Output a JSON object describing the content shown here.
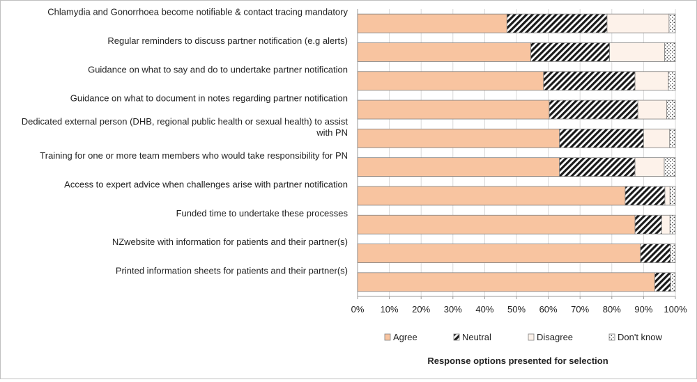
{
  "chart_data": {
    "type": "bar",
    "orientation": "horizontal",
    "stacked": "percent",
    "title": "",
    "xlabel": "Response options presented for selection",
    "ylabel": "",
    "xlim": [
      0,
      100
    ],
    "x_ticks": [
      "0%",
      "10%",
      "20%",
      "30%",
      "40%",
      "50%",
      "60%",
      "70%",
      "80%",
      "90%",
      "100%"
    ],
    "grid": true,
    "legend_position": "bottom",
    "categories": [
      "Chlamydia and Gonorrhoea become notifiable & contact tracing mandatory",
      "Regular reminders to discuss partner notification (e.g alerts)",
      "Guidance on what to say and do to undertake partner notification",
      "Guidance on what to document in notes regarding partner notification",
      "Dedicated external person (DHB, regional public health or sexual health) to assist with PN",
      "Training for one or more team members who would take responsibility for PN",
      "Access to expert advice when challenges arise with partner notification",
      "Funded time to undertake these processes",
      "NZwebsite with information for patients and their partner(s)",
      "Printed information sheets for patients and their partner(s)"
    ],
    "series": [
      {
        "name": "Agree",
        "color": "#f8c4a0",
        "pattern": "solid",
        "values": [
          47,
          54.5,
          58.5,
          60.3,
          63.5,
          63.5,
          84.2,
          87.3,
          89,
          93.5
        ]
      },
      {
        "name": "Neutral",
        "color": "#1a1a1a",
        "pattern": "diagonal-hatch",
        "values": [
          31.5,
          24.8,
          28.8,
          27.9,
          26.5,
          23.8,
          12.5,
          8.4,
          9.4,
          5
        ]
      },
      {
        "name": "Disagree",
        "color": "#fdf2ea",
        "pattern": "solid",
        "values": [
          19.5,
          17.3,
          10.5,
          9.1,
          8.2,
          9.2,
          1.6,
          2.6,
          0,
          0
        ]
      },
      {
        "name": "Don't know",
        "color": "#ffffff",
        "pattern": "dots",
        "values": [
          2,
          3.4,
          2.2,
          2.7,
          1.8,
          3.5,
          1.7,
          1.7,
          1.6,
          1.5
        ]
      }
    ]
  }
}
